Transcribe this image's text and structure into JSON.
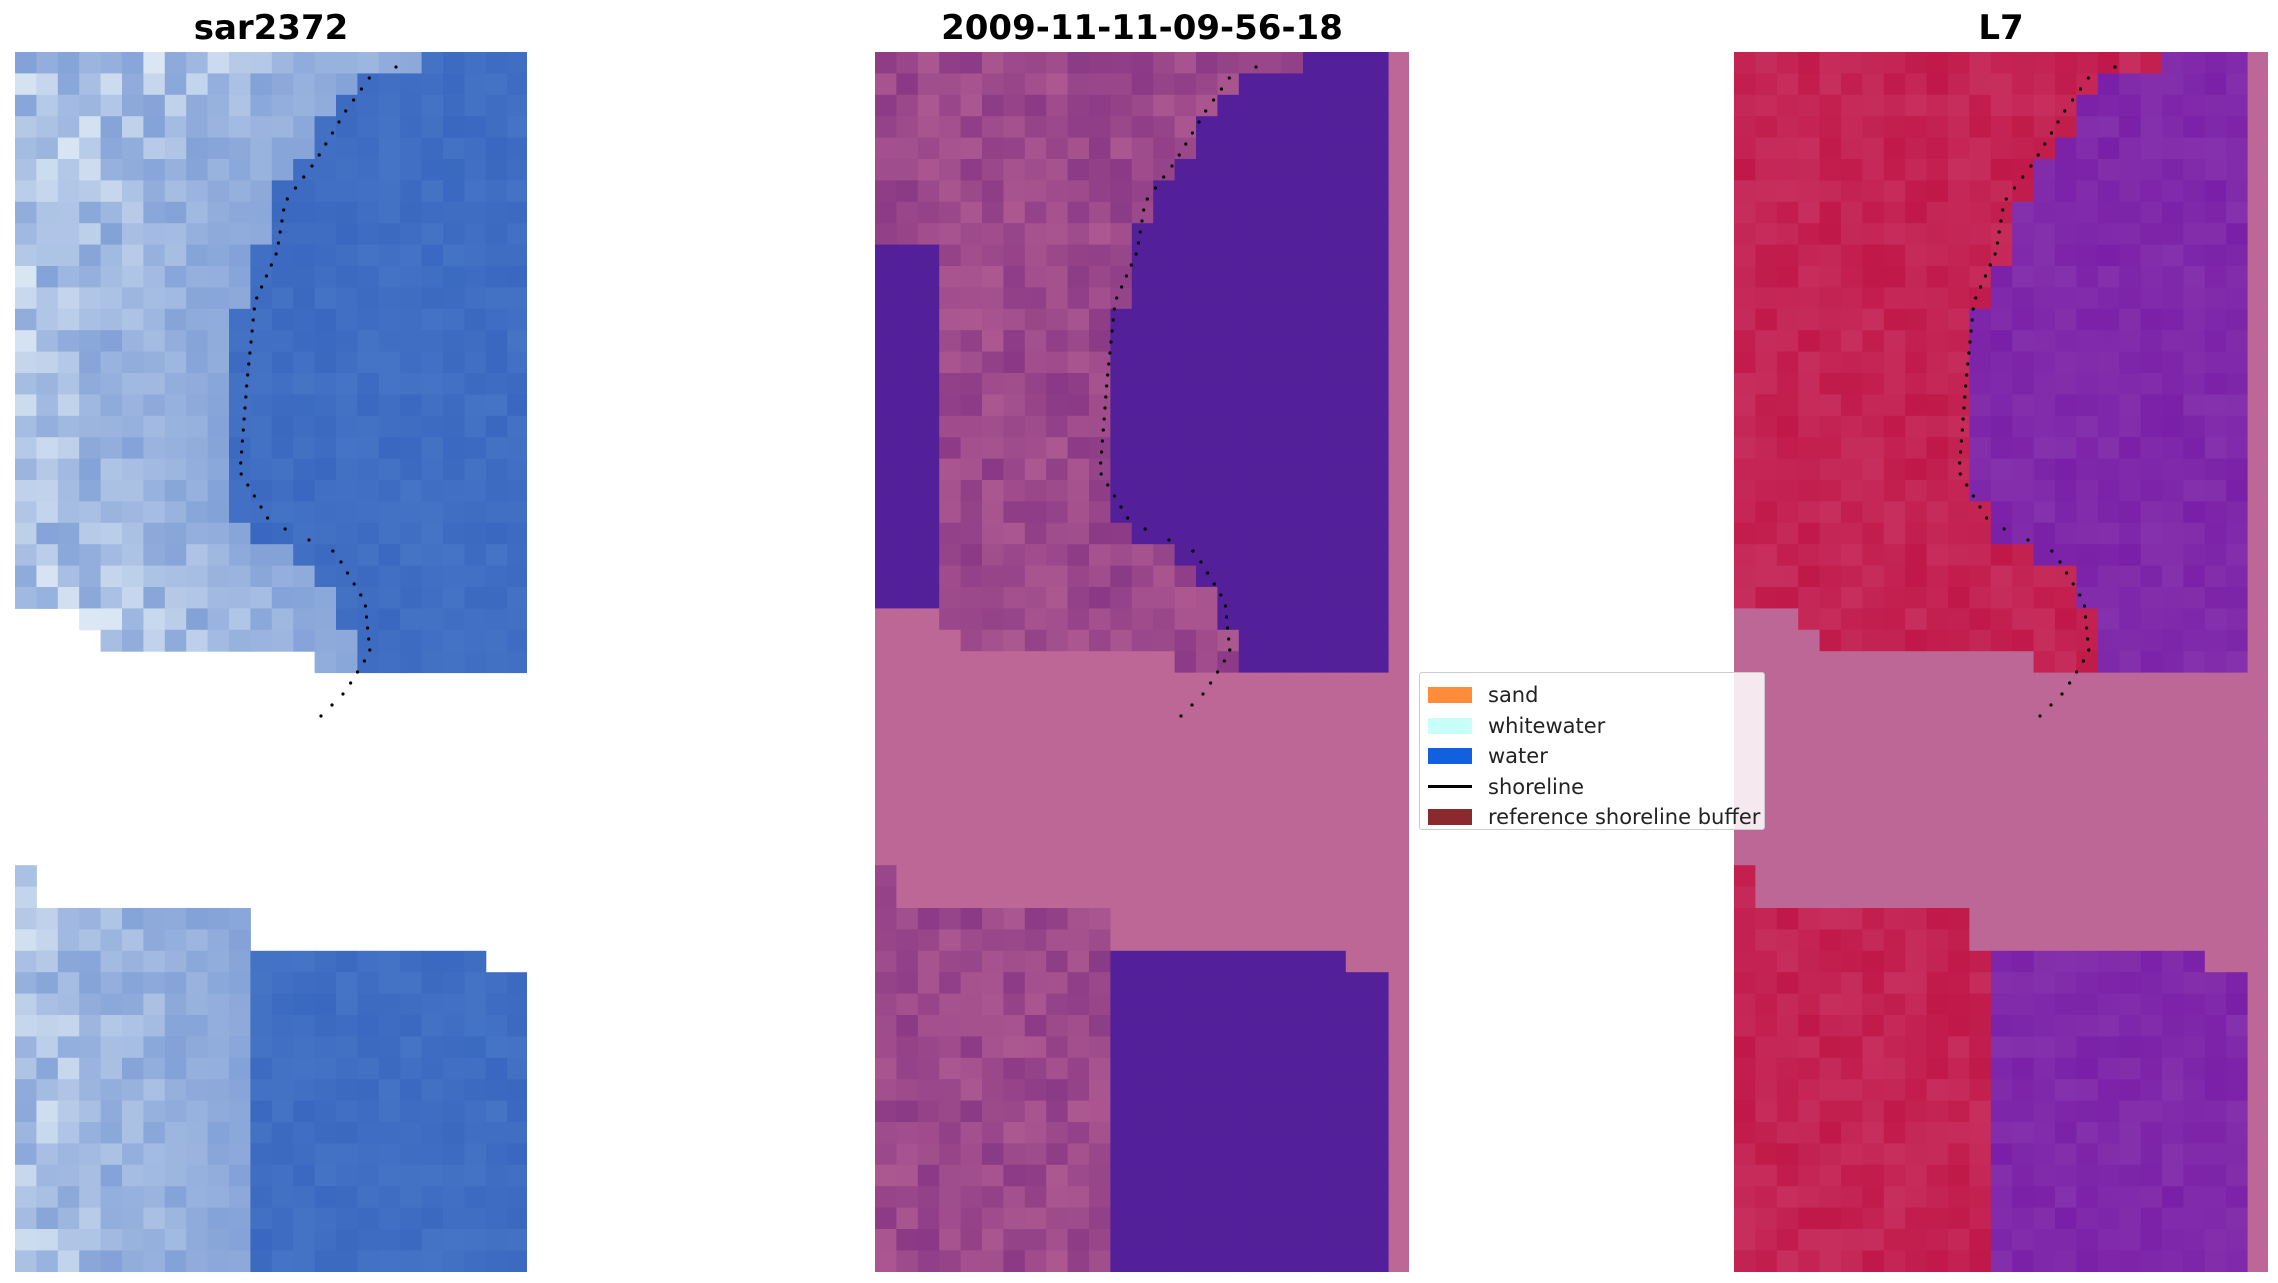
{
  "panels": [
    {
      "title": "sar2372"
    },
    {
      "title": "2009-11-11-09-56-18"
    },
    {
      "title": "L7"
    }
  ],
  "legend": {
    "items": [
      {
        "label": "sand",
        "color": "#ff8c3a",
        "type": "patch"
      },
      {
        "label": "whitewater",
        "color": "#c8fff8",
        "type": "patch"
      },
      {
        "label": "water",
        "color": "#1060e0",
        "type": "patch"
      },
      {
        "label": "shoreline",
        "color": "#000000",
        "type": "line"
      },
      {
        "label": "reference shoreline buffer",
        "color": "#8b2a2e",
        "type": "patch"
      }
    ]
  },
  "colors": {
    "rgb_water": "#3a68c0",
    "rgb_surf": "#dce8f4",
    "class_land": "#bd6796",
    "class_water": "#53209a",
    "class_sand_overlay": "#7a2a80",
    "mndwi_high": "#c01848",
    "mndwi_low": "#7a20a8",
    "shoreline": "#000000"
  }
}
